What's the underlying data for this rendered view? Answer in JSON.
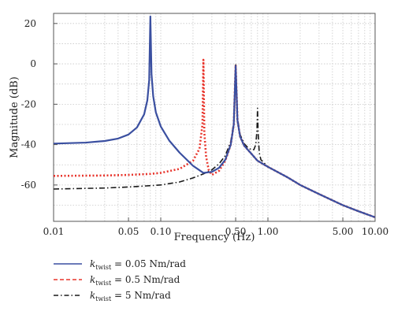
{
  "chart_data": {
    "type": "line",
    "title": "",
    "xlabel": "Frequency (Hz)",
    "ylabel": "Magnitude (dB)",
    "xscale": "log",
    "xlim": [
      0.01,
      10.0
    ],
    "ylim": [
      -78,
      25
    ],
    "x_ticks": [
      {
        "value": 0.01,
        "label": "0.01"
      },
      {
        "value": 0.05,
        "label": "0.05"
      },
      {
        "value": 0.1,
        "label": "0.10"
      },
      {
        "value": 0.5,
        "label": "0.50"
      },
      {
        "value": 1.0,
        "label": "1.00"
      },
      {
        "value": 5.0,
        "label": "5.00"
      },
      {
        "value": 10.0,
        "label": "10.00"
      }
    ],
    "y_ticks": [
      {
        "value": 20,
        "label": "20"
      },
      {
        "value": 0,
        "label": "0"
      },
      {
        "value": -20,
        "label": "-20"
      },
      {
        "value": -40,
        "label": "-40"
      },
      {
        "value": -60,
        "label": "-60"
      }
    ],
    "grid": true,
    "legend_position": "bottom-left-outside",
    "series": [
      {
        "name": "k_twist = 0.05 Nm/rad",
        "legend": {
          "symbol": "k",
          "sub": "twist",
          "text": " = 0.05 Nm/rad"
        },
        "color": "#3a4fa0",
        "style": "solid",
        "x": [
          0.01,
          0.02,
          0.03,
          0.04,
          0.05,
          0.06,
          0.07,
          0.075,
          0.078,
          0.08,
          0.082,
          0.085,
          0.09,
          0.1,
          0.12,
          0.15,
          0.2,
          0.25,
          0.3,
          0.35,
          0.4,
          0.45,
          0.48,
          0.5,
          0.52,
          0.55,
          0.6,
          0.7,
          0.8,
          1.0,
          1.5,
          2.0,
          3.0,
          5.0,
          7.0,
          10.0
        ],
        "y": [
          -39.5,
          -39.0,
          -38.2,
          -37.0,
          -35.0,
          -31.5,
          -25.0,
          -18.0,
          -8.0,
          23.5,
          -5.0,
          -16.0,
          -24.0,
          -31.0,
          -38.0,
          -44.0,
          -50.5,
          -54.0,
          -53.5,
          -51.5,
          -47.5,
          -40.0,
          -30.0,
          -1.0,
          -28.0,
          -36.0,
          -40.5,
          -44.5,
          -48.0,
          -51.0,
          -56.0,
          -60.0,
          -64.5,
          -70.0,
          -73.0,
          -76.0
        ]
      },
      {
        "name": "k_twist = 0.5 Nm/rad",
        "legend": {
          "symbol": "k",
          "sub": "twist",
          "text": " = 0.5 Nm/rad"
        },
        "color": "#e8352c",
        "style": "dotted",
        "x": [
          0.01,
          0.03,
          0.05,
          0.08,
          0.1,
          0.15,
          0.2,
          0.23,
          0.245,
          0.25,
          0.255,
          0.265,
          0.28,
          0.3,
          0.35,
          0.4,
          0.45,
          0.48,
          0.5,
          0.52,
          0.55,
          0.6,
          0.7,
          0.8,
          1.0,
          1.5,
          2.0,
          3.0,
          5.0,
          7.0,
          10.0
        ],
        "y": [
          -55.5,
          -55.3,
          -55.0,
          -54.5,
          -54.0,
          -52.0,
          -48.0,
          -42.0,
          -30.0,
          2.0,
          -34.0,
          -46.0,
          -52.5,
          -55.0,
          -53.0,
          -48.0,
          -40.0,
          -30.0,
          -0.5,
          -28.0,
          -36.0,
          -40.5,
          -44.5,
          -48.0,
          -51.0,
          -56.0,
          -60.0,
          -64.5,
          -70.0,
          -73.0,
          -76.0
        ]
      },
      {
        "name": "k_twist = 5 Nm/rad",
        "legend": {
          "symbol": "k",
          "sub": "twist",
          "text": " = 5 Nm/rad"
        },
        "color": "#1a1a1a",
        "style": "dashdot",
        "x": [
          0.01,
          0.03,
          0.05,
          0.1,
          0.15,
          0.2,
          0.25,
          0.3,
          0.35,
          0.4,
          0.45,
          0.48,
          0.5,
          0.52,
          0.55,
          0.6,
          0.65,
          0.7,
          0.74,
          0.77,
          0.79,
          0.8,
          0.81,
          0.83,
          0.86,
          0.9,
          1.0,
          1.5,
          2.0,
          3.0,
          5.0,
          7.0,
          10.0
        ],
        "y": [
          -62.0,
          -61.5,
          -61.0,
          -60.0,
          -58.5,
          -56.5,
          -54.5,
          -52.5,
          -49.5,
          -45.5,
          -38.5,
          -29.0,
          0.0,
          -27.0,
          -35.0,
          -39.5,
          -41.5,
          -42.5,
          -42.5,
          -40.0,
          -33.0,
          -22.0,
          -34.0,
          -44.0,
          -47.5,
          -48.5,
          -51.0,
          -56.0,
          -60.0,
          -64.5,
          -70.0,
          -73.0,
          -76.0
        ]
      }
    ]
  }
}
